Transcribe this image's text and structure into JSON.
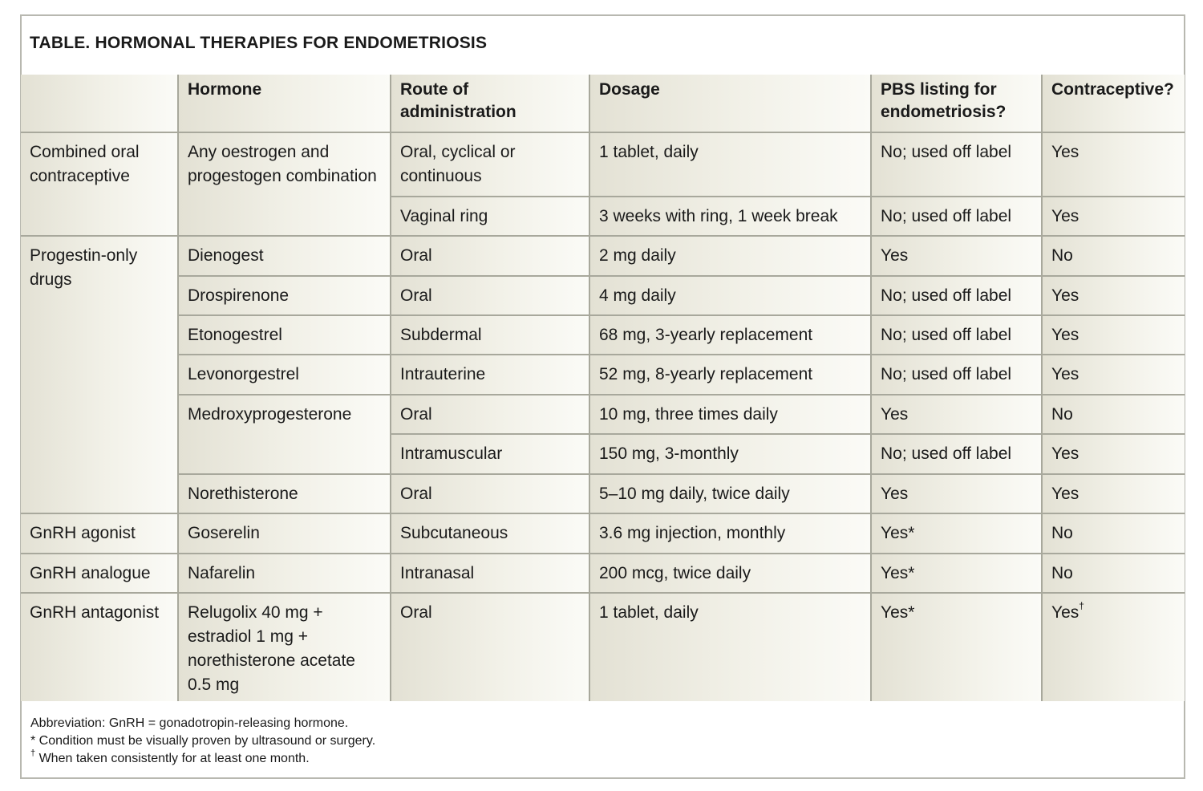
{
  "title": "TABLE. HORMONAL THERAPIES FOR ENDOMETRIOSIS",
  "headers": {
    "category": "",
    "hormone": "Hormone",
    "route": "Route of administration",
    "dosage": "Dosage",
    "pbs": "PBS listing for endometriosis?",
    "contraceptive": "Contraceptive?"
  },
  "rows": [
    {
      "category": "Combined oral contraceptive",
      "hormone": "Any oestrogen and progestogen combination",
      "route": "Oral, cyclical or continuous",
      "dosage": "1 tablet, daily",
      "pbs": "No; used off label",
      "contraceptive": "Yes"
    },
    {
      "route": "Vaginal ring",
      "dosage": "3 weeks with ring, 1 week break",
      "pbs": "No; used off label",
      "contraceptive": "Yes"
    },
    {
      "category": "Progestin-only drugs",
      "hormone": "Dienogest",
      "route": "Oral",
      "dosage": "2 mg daily",
      "pbs": "Yes",
      "contraceptive": "No"
    },
    {
      "hormone": "Drospirenone",
      "route": "Oral",
      "dosage": "4 mg daily",
      "pbs": "No; used off label",
      "contraceptive": "Yes"
    },
    {
      "hormone": "Etonogestrel",
      "route": "Subdermal",
      "dosage": "68 mg, 3-yearly replacement",
      "pbs": "No; used off label",
      "contraceptive": "Yes"
    },
    {
      "hormone": "Levonorgestrel",
      "route": "Intrauterine",
      "dosage": "52 mg, 8-yearly replacement",
      "pbs": "No; used off label",
      "contraceptive": "Yes"
    },
    {
      "hormone": "Medroxyprogesterone",
      "route": "Oral",
      "dosage": "10 mg, three times daily",
      "pbs": "Yes",
      "contraceptive": "No"
    },
    {
      "route": "Intramuscular",
      "dosage": "150 mg, 3-monthly",
      "pbs": "No; used off label",
      "contraceptive": "Yes"
    },
    {
      "hormone": "Norethisterone",
      "route": "Oral",
      "dosage": "5–10 mg daily, twice daily",
      "pbs": "Yes",
      "contraceptive": "Yes"
    },
    {
      "category": "GnRH agonist",
      "hormone": "Goserelin",
      "route": "Subcutaneous",
      "dosage": "3.6 mg injection, monthly",
      "pbs": "Yes*",
      "contraceptive": "No"
    },
    {
      "category": "GnRH analogue",
      "hormone": "Nafarelin",
      "route": "Intranasal",
      "dosage": "200 mcg, twice daily",
      "pbs": "Yes*",
      "contraceptive": "No"
    },
    {
      "category": "GnRH antagonist",
      "hormone": "Relugolix 40 mg + estradiol 1 mg + norethisterone acetate 0.5 mg",
      "route": "Oral",
      "dosage": "1 tablet, daily",
      "pbs": "Yes*",
      "contraceptive": "Yes",
      "contraceptive_mark": "†"
    }
  ],
  "footnotes": {
    "abbreviation": "Abbreviation: GnRH = gonadotropin-releasing hormone.",
    "asterisk": "* Condition must be visually proven by ultrasound or surgery.",
    "dagger_mark": "†",
    "dagger": " When taken consistently for at least one month."
  }
}
